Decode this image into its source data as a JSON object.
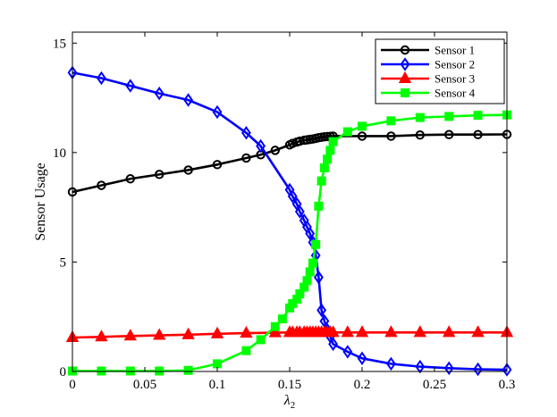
{
  "chart_data": {
    "type": "line",
    "xlabel": "λ",
    "xlabel_sub": "2",
    "ylabel": "Sensor Usage",
    "xlim": [
      0,
      0.3
    ],
    "ylim": [
      0,
      15.5
    ],
    "xticks": [
      0,
      0.05,
      0.1,
      0.15,
      0.2,
      0.25,
      0.3
    ],
    "xtick_labels": [
      "0",
      "0.05",
      "0.1",
      "0.15",
      "0.2",
      "0.25",
      "0.3"
    ],
    "yticks": [
      0,
      5,
      10,
      15
    ],
    "ytick_labels": [
      "0",
      "5",
      "10",
      "15"
    ],
    "grid": false,
    "legend_position": "top-right",
    "series": [
      {
        "name": "Sensor 1",
        "color": "#000000",
        "marker": "circle",
        "x": [
          0,
          0.02,
          0.04,
          0.06,
          0.08,
          0.1,
          0.12,
          0.13,
          0.14,
          0.15,
          0.152,
          0.155,
          0.157,
          0.16,
          0.162,
          0.164,
          0.166,
          0.168,
          0.17,
          0.172,
          0.174,
          0.176,
          0.178,
          0.18,
          0.2,
          0.22,
          0.24,
          0.26,
          0.28,
          0.3
        ],
        "y": [
          8.2,
          8.5,
          8.8,
          9.0,
          9.2,
          9.45,
          9.75,
          9.9,
          10.1,
          10.35,
          10.42,
          10.48,
          10.52,
          10.56,
          10.58,
          10.6,
          10.62,
          10.65,
          10.68,
          10.7,
          10.72,
          10.73,
          10.74,
          10.75,
          10.75,
          10.75,
          10.8,
          10.82,
          10.82,
          10.83
        ]
      },
      {
        "name": "Sensor 2",
        "color": "#0000ff",
        "marker": "diamond",
        "x": [
          0,
          0.02,
          0.04,
          0.06,
          0.08,
          0.1,
          0.12,
          0.13,
          0.15,
          0.152,
          0.155,
          0.157,
          0.16,
          0.162,
          0.164,
          0.166,
          0.168,
          0.17,
          0.172,
          0.174,
          0.176,
          0.178,
          0.18,
          0.19,
          0.2,
          0.22,
          0.24,
          0.26,
          0.28,
          0.3
        ],
        "y": [
          13.65,
          13.4,
          13.05,
          12.7,
          12.4,
          11.85,
          10.9,
          10.3,
          8.3,
          8.0,
          7.65,
          7.3,
          6.9,
          6.6,
          6.3,
          5.9,
          5.3,
          4.3,
          2.8,
          2.3,
          1.9,
          1.6,
          1.25,
          0.9,
          0.6,
          0.35,
          0.22,
          0.15,
          0.1,
          0.08
        ]
      },
      {
        "name": "Sensor 3",
        "color": "#ff0000",
        "marker": "triangle",
        "x": [
          0,
          0.02,
          0.04,
          0.06,
          0.08,
          0.1,
          0.12,
          0.14,
          0.15,
          0.152,
          0.155,
          0.157,
          0.16,
          0.162,
          0.164,
          0.166,
          0.168,
          0.17,
          0.172,
          0.174,
          0.176,
          0.178,
          0.18,
          0.19,
          0.2,
          0.22,
          0.24,
          0.26,
          0.28,
          0.3
        ],
        "y": [
          1.55,
          1.58,
          1.62,
          1.65,
          1.68,
          1.72,
          1.75,
          1.77,
          1.78,
          1.78,
          1.78,
          1.78,
          1.78,
          1.78,
          1.78,
          1.78,
          1.78,
          1.78,
          1.78,
          1.78,
          1.78,
          1.78,
          1.78,
          1.78,
          1.78,
          1.78,
          1.78,
          1.78,
          1.78,
          1.78
        ]
      },
      {
        "name": "Sensor 4",
        "color": "#00ff00",
        "marker": "square",
        "x": [
          0,
          0.02,
          0.04,
          0.06,
          0.08,
          0.1,
          0.12,
          0.13,
          0.14,
          0.145,
          0.15,
          0.152,
          0.155,
          0.157,
          0.16,
          0.162,
          0.164,
          0.166,
          0.168,
          0.17,
          0.172,
          0.174,
          0.176,
          0.178,
          0.18,
          0.19,
          0.2,
          0.22,
          0.24,
          0.26,
          0.28,
          0.3
        ],
        "y": [
          0.02,
          0.02,
          0.02,
          0.02,
          0.05,
          0.35,
          0.95,
          1.45,
          2.05,
          2.4,
          2.9,
          3.1,
          3.3,
          3.55,
          3.85,
          4.15,
          4.55,
          4.95,
          5.8,
          7.55,
          8.7,
          9.3,
          9.7,
          10.1,
          10.5,
          10.95,
          11.2,
          11.45,
          11.6,
          11.65,
          11.7,
          11.72
        ]
      }
    ]
  }
}
